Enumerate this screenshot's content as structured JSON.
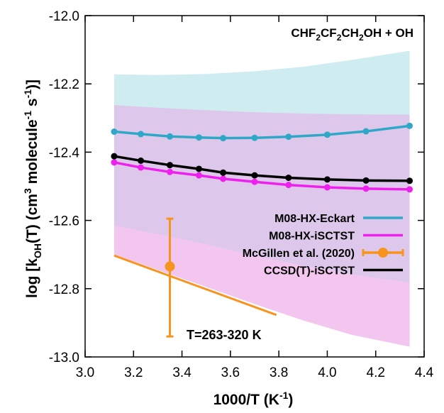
{
  "chart_data": {
    "type": "line",
    "title": "",
    "annotation_reaction": "CHF2CF2CH2OH + OH",
    "annotation_range": "T=263-320 K",
    "xlabel": "1000/T (K-1)",
    "ylabel": "log [kOH(T) (cm3 molecule-1 s-1)]",
    "xlim": [
      3.0,
      4.4
    ],
    "ylim": [
      -13.0,
      -12.0
    ],
    "x_ticks": [
      "3.0",
      "3.2",
      "3.4",
      "3.6",
      "3.8",
      "4.0",
      "4.2",
      "4.4"
    ],
    "y_ticks": [
      "-13.0",
      "-12.8",
      "-12.6",
      "-12.4",
      "-12.2",
      "-12.0"
    ],
    "legend_position": "lower-right",
    "series": [
      {
        "name": "M08-HX-Eckart",
        "color": "#2fa8c8",
        "x": [
          3.12,
          3.23,
          3.35,
          3.47,
          3.57,
          3.7,
          3.84,
          4.0,
          4.16,
          4.34
        ],
        "y": [
          -12.34,
          -12.347,
          -12.354,
          -12.357,
          -12.359,
          -12.358,
          -12.355,
          -12.349,
          -12.339,
          -12.323
        ],
        "markers": true
      },
      {
        "name": "M08-HX-iSCTST",
        "color": "#ee20ee",
        "x": [
          3.12,
          3.23,
          3.35,
          3.47,
          3.57,
          3.7,
          3.84,
          4.0,
          4.16,
          4.34
        ],
        "y": [
          -12.43,
          -12.445,
          -12.458,
          -12.468,
          -12.478,
          -12.487,
          -12.496,
          -12.503,
          -12.507,
          -12.509
        ],
        "markers": true
      },
      {
        "name": "McGillen et al. (2020)",
        "color": "#f7941d",
        "x": [
          3.35
        ],
        "y": [
          -12.735
        ],
        "yerr_low": [
          -12.94
        ],
        "yerr_high": [
          -12.595
        ],
        "markers": true
      },
      {
        "name": "CCSD(T)-iSCTST",
        "color": "#000000",
        "x": [
          3.12,
          3.23,
          3.35,
          3.47,
          3.57,
          3.7,
          3.84,
          4.0,
          4.16,
          4.34
        ],
        "y": [
          -12.412,
          -12.425,
          -12.438,
          -12.449,
          -12.46,
          -12.468,
          -12.475,
          -12.48,
          -12.483,
          -12.484
        ],
        "markers": true
      }
    ],
    "fit_line": {
      "color": "#f7941d",
      "x": [
        3.12,
        3.79
      ],
      "y": [
        -12.703,
        -12.877
      ]
    },
    "bands": [
      {
        "color": "#cfedf0",
        "x": [
          3.12,
          3.3,
          3.5,
          3.7,
          3.9,
          4.1,
          4.34
        ],
        "upper": [
          -12.172,
          -12.174,
          -12.171,
          -12.163,
          -12.15,
          -12.13,
          -12.103
        ],
        "lower": [
          -12.265,
          -12.273,
          -12.28,
          -12.285,
          -12.288,
          -12.29,
          -12.29
        ]
      },
      {
        "color": "#ddc8ec",
        "x": [
          3.12,
          3.3,
          3.5,
          3.7,
          3.9,
          4.1,
          4.34
        ],
        "upper": [
          -12.262,
          -12.27,
          -12.277,
          -12.283,
          -12.287,
          -12.289,
          -12.29
        ],
        "lower": [
          -12.618,
          -12.644,
          -12.673,
          -12.705,
          -12.735,
          -12.76,
          -12.785
        ]
      },
      {
        "color": "#f2c6ef",
        "x": [
          3.12,
          3.3,
          3.5,
          3.7,
          3.9,
          4.1,
          4.34
        ],
        "upper": [
          -12.615,
          -12.64,
          -12.67,
          -12.703,
          -12.733,
          -12.758,
          -12.782
        ],
        "lower": [
          -12.7,
          -12.745,
          -12.795,
          -12.845,
          -12.893,
          -12.935,
          -12.97
        ]
      }
    ]
  }
}
